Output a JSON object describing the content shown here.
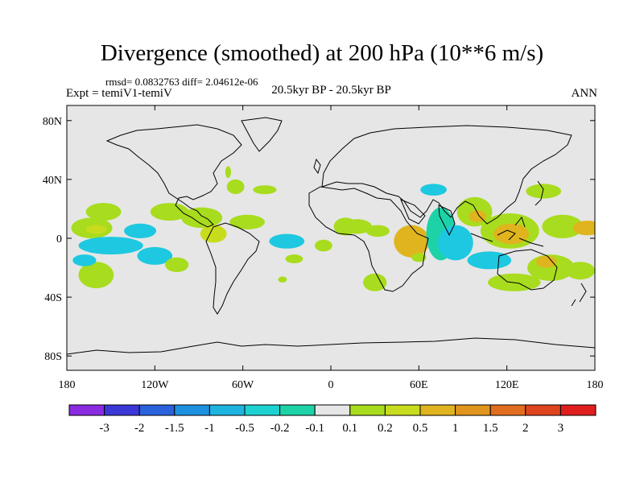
{
  "title": "Divergence (smoothed) at 200 hPa (10**6 m/s)",
  "stats": "rmsd= 0.0832763 diff= 2.04612e-06",
  "experiment": "Expt = temiV1-temiV",
  "period": "20.5kyr BP - 20.5kyr BP",
  "season": "ANN",
  "lat_ticks": [
    "80N",
    "40N",
    "0",
    "40S",
    "80S"
  ],
  "lon_ticks": [
    "180",
    "120W",
    "60W",
    "0",
    "60E",
    "120E",
    "180"
  ],
  "colorbar": {
    "labels": [
      "-3",
      "-2",
      "-1.5",
      "-1",
      "-0.5",
      "-0.2",
      "-0.1",
      "0.1",
      "0.2",
      "0.5",
      "1",
      "1.5",
      "2",
      "3"
    ],
    "colors": [
      "#8a2be2",
      "#3b37d6",
      "#2a62dc",
      "#1e90e0",
      "#1ec8e0",
      "#1ed2a8",
      "#e6e6e6",
      "#a8dc1e",
      "#c8dc1e",
      "#e0b41e",
      "#e0961e",
      "#e06e1e",
      "#e0441e",
      "#e01e1e"
    ]
  },
  "map": {
    "background_color": "#e6e6e6",
    "features": [
      {
        "lon": -155,
        "lat": 18,
        "rx": 12,
        "ry": 6,
        "bin": 7
      },
      {
        "lon": -163,
        "lat": 7,
        "rx": 14,
        "ry": 7,
        "bin": 7
      },
      {
        "lon": -160,
        "lat": 6,
        "rx": 7,
        "ry": 3,
        "bin": 8
      },
      {
        "lon": -150,
        "lat": -5,
        "rx": 22,
        "ry": 6,
        "bin": 4
      },
      {
        "lon": -120,
        "lat": -12,
        "rx": 12,
        "ry": 6,
        "bin": 4
      },
      {
        "lon": -130,
        "lat": 5,
        "rx": 11,
        "ry": 5,
        "bin": 4
      },
      {
        "lon": -110,
        "lat": 18,
        "rx": 13,
        "ry": 6,
        "bin": 7
      },
      {
        "lon": -88,
        "lat": 14,
        "rx": 14,
        "ry": 7,
        "bin": 7
      },
      {
        "lon": -80,
        "lat": 3,
        "rx": 9,
        "ry": 6,
        "bin": 8
      },
      {
        "lon": -160,
        "lat": -25,
        "rx": 12,
        "ry": 9,
        "bin": 7
      },
      {
        "lon": -168,
        "lat": -15,
        "rx": 8,
        "ry": 4,
        "bin": 4
      },
      {
        "lon": -105,
        "lat": -18,
        "rx": 8,
        "ry": 5,
        "bin": 7
      },
      {
        "lon": -65,
        "lat": 35,
        "rx": 6,
        "ry": 5,
        "bin": 7
      },
      {
        "lon": -70,
        "lat": 45,
        "rx": 2,
        "ry": 4,
        "bin": 7
      },
      {
        "lon": -57,
        "lat": 11,
        "rx": 12,
        "ry": 5,
        "bin": 7
      },
      {
        "lon": -45,
        "lat": 33,
        "rx": 8,
        "ry": 3,
        "bin": 7
      },
      {
        "lon": -30,
        "lat": -2,
        "rx": 12,
        "ry": 5,
        "bin": 4
      },
      {
        "lon": -25,
        "lat": -14,
        "rx": 6,
        "ry": 3,
        "bin": 7
      },
      {
        "lon": -33,
        "lat": -28,
        "rx": 3,
        "ry": 2,
        "bin": 7
      },
      {
        "lon": -5,
        "lat": -5,
        "rx": 6,
        "ry": 4,
        "bin": 7
      },
      {
        "lon": 10,
        "lat": 8,
        "rx": 8,
        "ry": 6,
        "bin": 7
      },
      {
        "lon": 18,
        "lat": 8,
        "rx": 10,
        "ry": 5,
        "bin": 7
      },
      {
        "lon": 32,
        "lat": 5,
        "rx": 8,
        "ry": 4,
        "bin": 7
      },
      {
        "lon": 55,
        "lat": -2,
        "rx": 12,
        "ry": 11,
        "bin": 9
      },
      {
        "lon": 60,
        "lat": -13,
        "rx": 5,
        "ry": 3,
        "bin": 7
      },
      {
        "lon": 30,
        "lat": -30,
        "rx": 8,
        "ry": 6,
        "bin": 7
      },
      {
        "lon": 75,
        "lat": 3,
        "rx": 10,
        "ry": 18,
        "bin": 5
      },
      {
        "lon": 85,
        "lat": -3,
        "rx": 12,
        "ry": 12,
        "bin": 4
      },
      {
        "lon": 70,
        "lat": 33,
        "rx": 9,
        "ry": 4,
        "bin": 4
      },
      {
        "lon": 98,
        "lat": 18,
        "rx": 12,
        "ry": 10,
        "bin": 7
      },
      {
        "lon": 100,
        "lat": 15,
        "rx": 6,
        "ry": 4,
        "bin": 9
      },
      {
        "lon": 122,
        "lat": 5,
        "rx": 20,
        "ry": 12,
        "bin": 7
      },
      {
        "lon": 123,
        "lat": 3,
        "rx": 12,
        "ry": 7,
        "bin": 9
      },
      {
        "lon": 108,
        "lat": -15,
        "rx": 15,
        "ry": 6,
        "bin": 4
      },
      {
        "lon": 125,
        "lat": -30,
        "rx": 18,
        "ry": 6,
        "bin": 7
      },
      {
        "lon": 150,
        "lat": -20,
        "rx": 16,
        "ry": 9,
        "bin": 7
      },
      {
        "lon": 147,
        "lat": -16,
        "rx": 7,
        "ry": 4,
        "bin": 9
      },
      {
        "lon": 158,
        "lat": 8,
        "rx": 14,
        "ry": 8,
        "bin": 7
      },
      {
        "lon": 175,
        "lat": 7,
        "rx": 10,
        "ry": 5,
        "bin": 9
      },
      {
        "lon": 170,
        "lat": -22,
        "rx": 10,
        "ry": 6,
        "bin": 7
      },
      {
        "lon": 145,
        "lat": 32,
        "rx": 12,
        "ry": 5,
        "bin": 7
      }
    ]
  }
}
